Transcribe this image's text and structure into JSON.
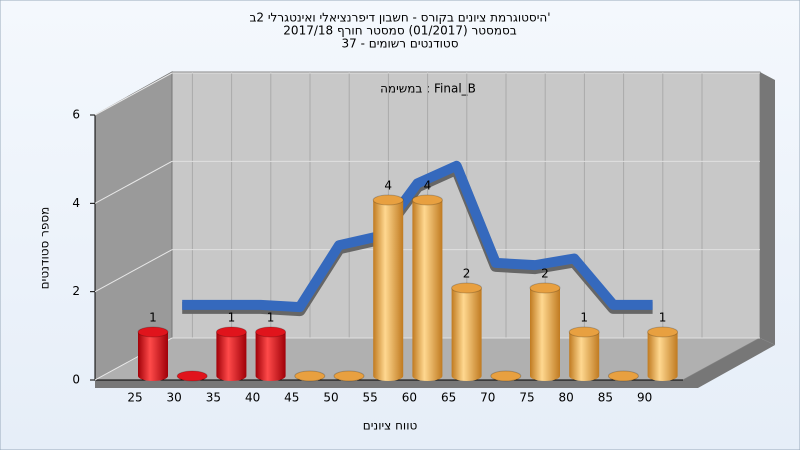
{
  "chart_data": {
    "type": "bar3d",
    "title": [
      "היסטוגרמת ציונים בקורס - חשבון דיפרנציאלי ואינטגרלי 2ב'",
      "בסמסטר  (01/2017)  סמסטר חורף 2017/18",
      "סטודנטים רשומים - 37"
    ],
    "annotation": "במשימה : Final_B",
    "x_label": "טווח ציונים",
    "y_label": "מספר סטודנטים",
    "categories": [
      "25",
      "30",
      "35",
      "40",
      "45",
      "50",
      "55",
      "60",
      "65",
      "70",
      "75",
      "80",
      "85",
      "90"
    ],
    "values": [
      1,
      0,
      1,
      1,
      0,
      0,
      4,
      4,
      2,
      0,
      2,
      1,
      0,
      1
    ],
    "colors": [
      "#e0141c",
      "#e0141c",
      "#e0141c",
      "#e0141c",
      "#e8a040",
      "#e8a040",
      "#e8a040",
      "#e8a040",
      "#e8a040",
      "#e8a040",
      "#e8a040",
      "#e8a040",
      "#e8a040",
      "#e8a040"
    ],
    "trend": {
      "color": "#3569bd",
      "values": [
        null,
        0.75,
        0.75,
        0.75,
        0.7,
        2.1,
        2.3,
        3.5,
        3.9,
        1.7,
        1.65,
        1.8,
        0.75,
        0.75
      ]
    },
    "ylim": [
      0,
      6
    ],
    "yticks": [
      0,
      2,
      4,
      6
    ],
    "grid": true
  }
}
